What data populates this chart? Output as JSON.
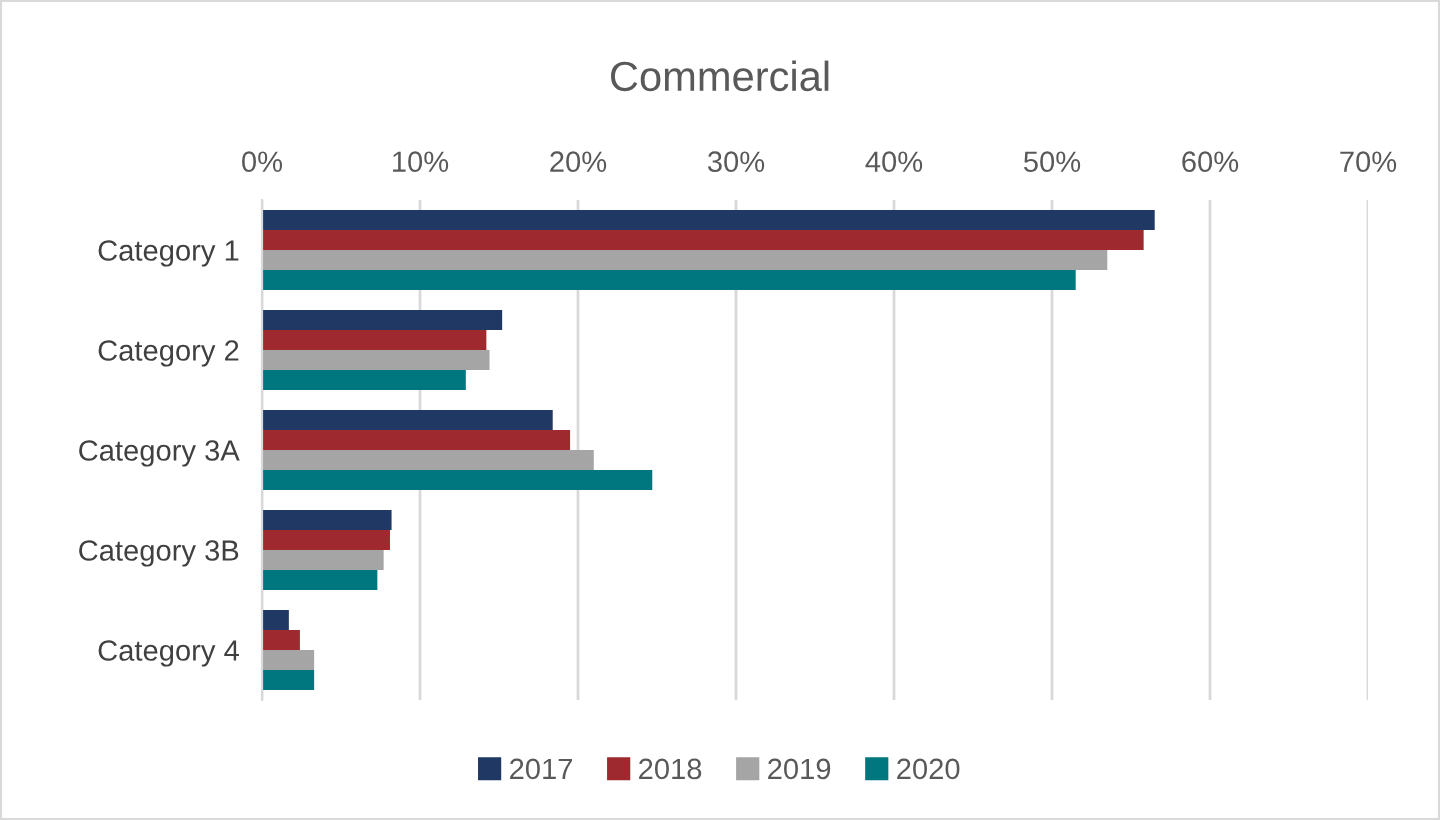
{
  "chart_data": {
    "type": "bar",
    "orientation": "horizontal",
    "title": "Commercial",
    "categories": [
      "Category 1",
      "Category 2",
      "Category 3A",
      "Category 3B",
      "Category 4"
    ],
    "series": [
      {
        "name": "2017",
        "color": "#203864",
        "values": [
          56.5,
          15.2,
          18.4,
          8.2,
          1.7
        ]
      },
      {
        "name": "2018",
        "color": "#9e2a2f",
        "values": [
          55.8,
          14.2,
          19.5,
          8.1,
          2.4
        ]
      },
      {
        "name": "2019",
        "color": "#a5a5a5",
        "values": [
          53.5,
          14.4,
          21.0,
          7.7,
          3.3
        ]
      },
      {
        "name": "2020",
        "color": "#00777f",
        "values": [
          51.5,
          12.9,
          24.7,
          7.3,
          3.3
        ]
      }
    ],
    "xlim": [
      0,
      70
    ],
    "xticks": [
      {
        "value": 0,
        "label": "0%"
      },
      {
        "value": 10,
        "label": "10%"
      },
      {
        "value": 20,
        "label": "20%"
      },
      {
        "value": 30,
        "label": "30%"
      },
      {
        "value": 40,
        "label": "40%"
      },
      {
        "value": 50,
        "label": "50%"
      },
      {
        "value": 60,
        "label": "60%"
      },
      {
        "value": 70,
        "label": "70%"
      }
    ],
    "grid": "x",
    "legend": "bottom"
  }
}
